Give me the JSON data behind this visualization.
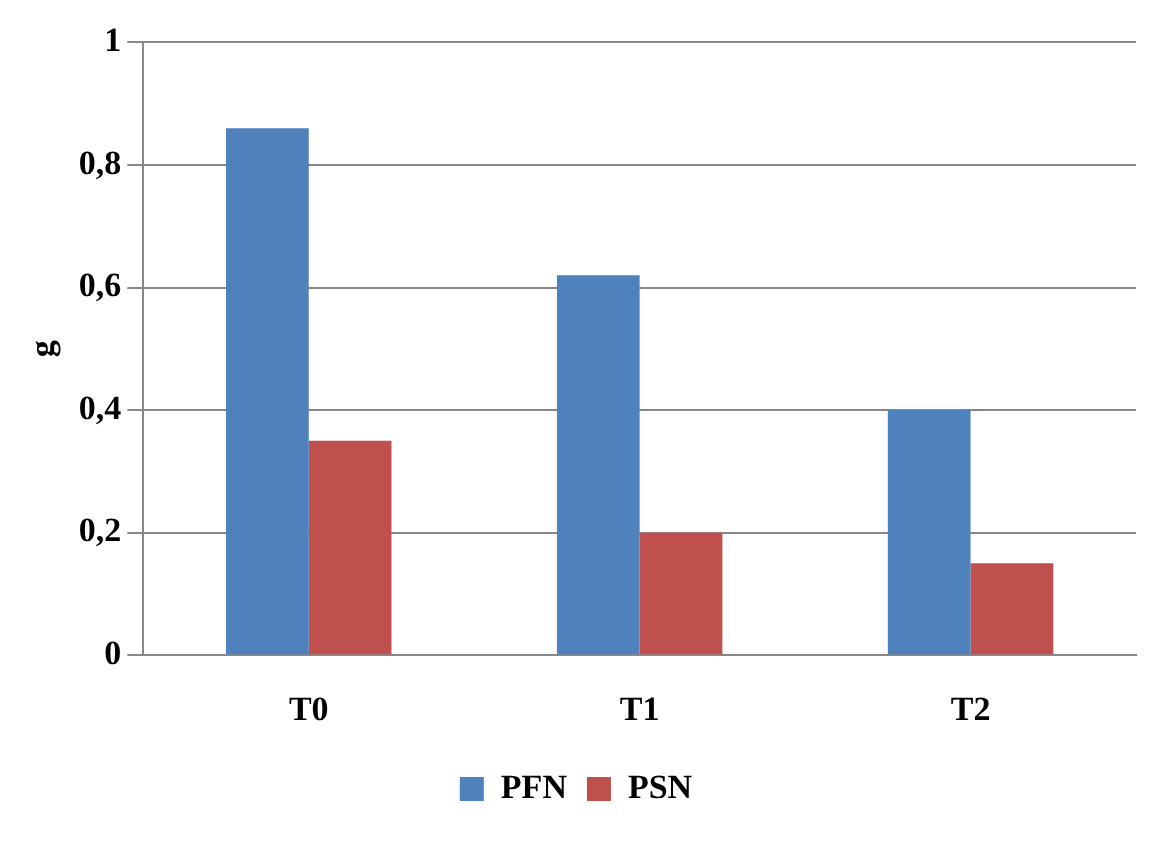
{
  "chart_data": {
    "type": "bar",
    "ylabel": "g",
    "categories": [
      "T0",
      "T1",
      "T2"
    ],
    "series": [
      {
        "name": "PFN",
        "color": "#4f81bd",
        "values": [
          0.86,
          0.62,
          0.4
        ]
      },
      {
        "name": "PSN",
        "color": "#c0504d",
        "values": [
          0.35,
          0.2,
          0.15
        ]
      }
    ],
    "ylim": [
      0,
      1
    ],
    "yticks": [
      0,
      {
        "value": 0.2,
        "label": "0,2"
      },
      {
        "value": 0.4,
        "label": "0,4"
      },
      {
        "value": 0.6,
        "label": "0,6"
      },
      {
        "value": 0.8,
        "label": "0,8"
      },
      1
    ],
    "grid": "y",
    "legend": "bottom"
  }
}
